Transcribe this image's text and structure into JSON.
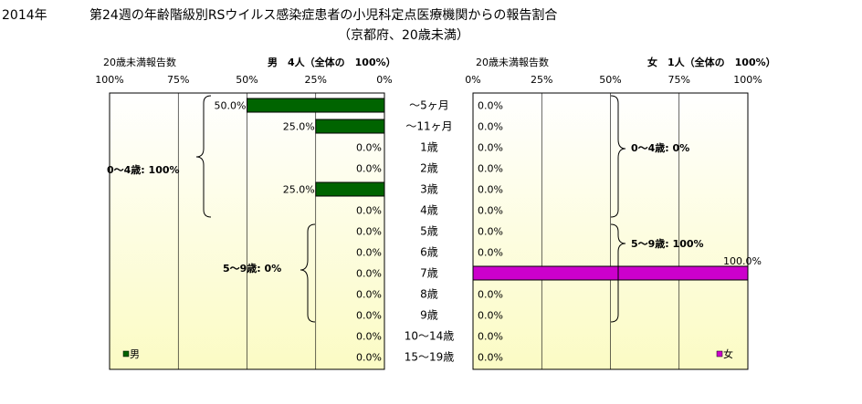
{
  "title": {
    "year": "2014年",
    "main": "第24週の年齢階級別RSウイルス感染症患者の小児科定点医療機関からの報告割合",
    "sub": "（京都府、20歳未満）"
  },
  "male": {
    "axis_title": "20歳未満報告数",
    "header": "男　4人（全体の　100%）",
    "legend": "男",
    "color": "#006400",
    "ticks": [
      "100%",
      "75%",
      "50%",
      "25%",
      "0%"
    ],
    "group_labels": [
      "0～4歳: 100%",
      "5～9歳: 0%"
    ]
  },
  "female": {
    "axis_title": "20歳未満報告数",
    "header": "女　1人（全体の　100%）",
    "legend": "女",
    "color": "#cc00cc",
    "ticks": [
      "0%",
      "25%",
      "50%",
      "75%",
      "100%"
    ],
    "group_labels": [
      "0～4歳: 0%",
      "5～9歳: 100%"
    ]
  },
  "chart_data": {
    "type": "bar",
    "categories": [
      "～5ヶ月",
      "～11ヶ月",
      "1歳",
      "2歳",
      "3歳",
      "4歳",
      "5歳",
      "6歳",
      "7歳",
      "8歳",
      "9歳",
      "10～14歳",
      "15～19歳"
    ],
    "series": [
      {
        "name": "男",
        "values": [
          50.0,
          25.0,
          0.0,
          0.0,
          25.0,
          0.0,
          0.0,
          0.0,
          0.0,
          0.0,
          0.0,
          0.0,
          0.0
        ],
        "labels": [
          "50.0%",
          "25.0%",
          "0.0%",
          "0.0%",
          "25.0%",
          "0.0%",
          "0.0%",
          "0.0%",
          "0.0%",
          "0.0%",
          "0.0%",
          "0.0%",
          "0.0%"
        ]
      },
      {
        "name": "女",
        "values": [
          0.0,
          0.0,
          0.0,
          0.0,
          0.0,
          0.0,
          0.0,
          0.0,
          100.0,
          0.0,
          0.0,
          0.0,
          0.0
        ],
        "labels": [
          "0.0%",
          "0.0%",
          "0.0%",
          "0.0%",
          "0.0%",
          "0.0%",
          "0.0%",
          "0.0%",
          "100.0%",
          "0.0%",
          "0.0%",
          "0.0%",
          "0.0%"
        ]
      }
    ],
    "xlim": [
      0,
      100
    ],
    "grid": true
  }
}
